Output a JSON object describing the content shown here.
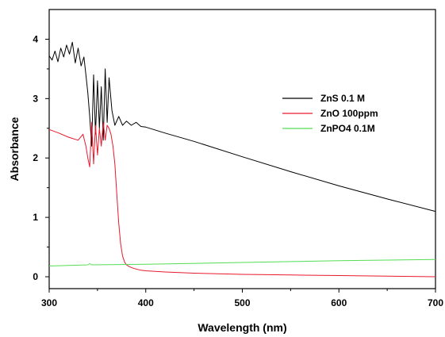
{
  "chart_data": {
    "type": "line",
    "xlabel": "Wavelength (nm)",
    "ylabel": "Absorbance",
    "xlim": [
      300,
      700
    ],
    "ylim": [
      -0.2,
      4.5
    ],
    "xticks": [
      300,
      400,
      500,
      600,
      700
    ],
    "yticks": [
      0,
      1,
      2,
      3,
      4
    ],
    "xtick_labels": [
      "300",
      "400",
      "500",
      "600",
      "700"
    ],
    "ytick_labels": [
      "0",
      "1",
      "2",
      "3",
      "4"
    ],
    "grid": false,
    "legend_position": "top-right",
    "series": [
      {
        "name": "ZnS  0.1 M",
        "color": "#000000",
        "x": [
          300,
          303,
          306,
          309,
          312,
          315,
          318,
          321,
          324,
          327,
          330,
          333,
          336,
          338,
          340,
          342,
          344,
          346,
          348,
          350,
          352,
          354,
          356,
          358,
          360,
          362,
          365,
          368,
          372,
          376,
          380,
          385,
          390,
          395,
          400,
          420,
          450,
          500,
          550,
          600,
          650,
          700
        ],
        "y": [
          3.72,
          3.65,
          3.8,
          3.62,
          3.85,
          3.7,
          3.9,
          3.75,
          3.95,
          3.6,
          3.85,
          3.55,
          3.7,
          3.4,
          3.1,
          2.7,
          2.2,
          3.4,
          2.4,
          3.3,
          2.5,
          3.2,
          2.3,
          3.5,
          2.6,
          3.35,
          2.8,
          2.55,
          2.7,
          2.55,
          2.62,
          2.55,
          2.6,
          2.53,
          2.52,
          2.42,
          2.28,
          2.02,
          1.77,
          1.53,
          1.31,
          1.1
        ]
      },
      {
        "name": "ZnO  100ppm",
        "color": "#e8192c",
        "x": [
          300,
          310,
          320,
          330,
          335,
          338,
          340,
          342,
          344,
          346,
          348,
          350,
          352,
          354,
          356,
          358,
          360,
          362,
          364,
          366,
          368,
          370,
          372,
          374,
          376,
          378,
          380,
          383,
          386,
          390,
          395,
          400,
          420,
          450,
          500,
          550,
          600,
          650,
          700
        ],
        "y": [
          2.48,
          2.42,
          2.35,
          2.3,
          2.4,
          2.2,
          2.0,
          1.85,
          2.6,
          1.9,
          2.55,
          2.05,
          2.5,
          2.2,
          2.6,
          2.3,
          2.55,
          2.5,
          2.4,
          2.2,
          1.9,
          1.4,
          0.9,
          0.55,
          0.35,
          0.25,
          0.2,
          0.17,
          0.15,
          0.13,
          0.11,
          0.1,
          0.08,
          0.06,
          0.04,
          0.03,
          0.02,
          0.01,
          0.0
        ]
      },
      {
        "name": "ZnPO4  0.1M",
        "color": "#55dd55",
        "x": [
          300,
          340,
          342,
          344,
          400,
          500,
          600,
          700
        ],
        "y": [
          0.18,
          0.2,
          0.22,
          0.2,
          0.21,
          0.24,
          0.27,
          0.29
        ]
      }
    ]
  }
}
